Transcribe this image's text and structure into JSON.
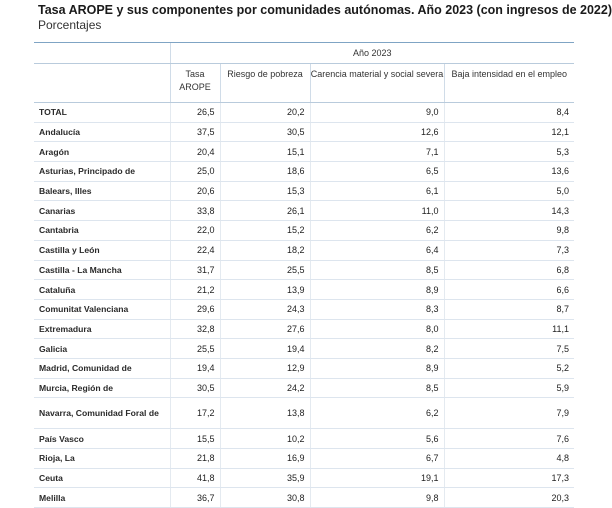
{
  "title": "Tasa AROPE y sus componentes por comunidades autónomas. Año 2023 (con ingresos de 2022)",
  "subtitle": "Porcentajes",
  "table": {
    "group_header": "Año 2023",
    "columns": [
      "Tasa AROPE",
      "Riesgo de pobreza",
      "Carencia material y social severa",
      "Baja intensidad en el empleo"
    ],
    "rows": [
      {
        "region": "TOTAL",
        "values": [
          "26,5",
          "20,2",
          "9,0",
          "8,4"
        ]
      },
      {
        "region": "Andalucía",
        "values": [
          "37,5",
          "30,5",
          "12,6",
          "12,1"
        ]
      },
      {
        "region": "Aragón",
        "values": [
          "20,4",
          "15,1",
          "7,1",
          "5,3"
        ]
      },
      {
        "region": "Asturias, Principado de",
        "values": [
          "25,0",
          "18,6",
          "6,5",
          "13,6"
        ]
      },
      {
        "region": "Balears, Illes",
        "values": [
          "20,6",
          "15,3",
          "6,1",
          "5,0"
        ]
      },
      {
        "region": "Canarias",
        "values": [
          "33,8",
          "26,1",
          "11,0",
          "14,3"
        ]
      },
      {
        "region": "Cantabria",
        "values": [
          "22,0",
          "15,2",
          "6,2",
          "9,8"
        ]
      },
      {
        "region": "Castilla y León",
        "values": [
          "22,4",
          "18,2",
          "6,4",
          "7,3"
        ]
      },
      {
        "region": "Castilla - La Mancha",
        "values": [
          "31,7",
          "25,5",
          "8,5",
          "6,8"
        ]
      },
      {
        "region": "Cataluña",
        "values": [
          "21,2",
          "13,9",
          "8,9",
          "6,6"
        ]
      },
      {
        "region": "Comunitat Valenciana",
        "values": [
          "29,6",
          "24,3",
          "8,3",
          "8,7"
        ]
      },
      {
        "region": "Extremadura",
        "values": [
          "32,8",
          "27,6",
          "8,0",
          "11,1"
        ]
      },
      {
        "region": "Galicia",
        "values": [
          "25,5",
          "19,4",
          "8,2",
          "7,5"
        ]
      },
      {
        "region": "Madrid, Comunidad de",
        "values": [
          "19,4",
          "12,9",
          "8,9",
          "5,2"
        ]
      },
      {
        "region": "Murcia, Región de",
        "values": [
          "30,5",
          "24,2",
          "8,5",
          "5,9"
        ]
      },
      {
        "region": "Navarra, Comunidad Foral de",
        "values": [
          "17,2",
          "13,8",
          "6,2",
          "7,9"
        ]
      },
      {
        "region": "País Vasco",
        "values": [
          "15,5",
          "10,2",
          "5,6",
          "7,6"
        ]
      },
      {
        "region": "Rioja, La",
        "values": [
          "21,8",
          "16,9",
          "6,7",
          "4,8"
        ]
      },
      {
        "region": "Ceuta",
        "values": [
          "41,8",
          "35,9",
          "19,1",
          "17,3"
        ]
      },
      {
        "region": "Melilla",
        "values": [
          "36,7",
          "30,8",
          "9,8",
          "20,3"
        ]
      }
    ]
  }
}
